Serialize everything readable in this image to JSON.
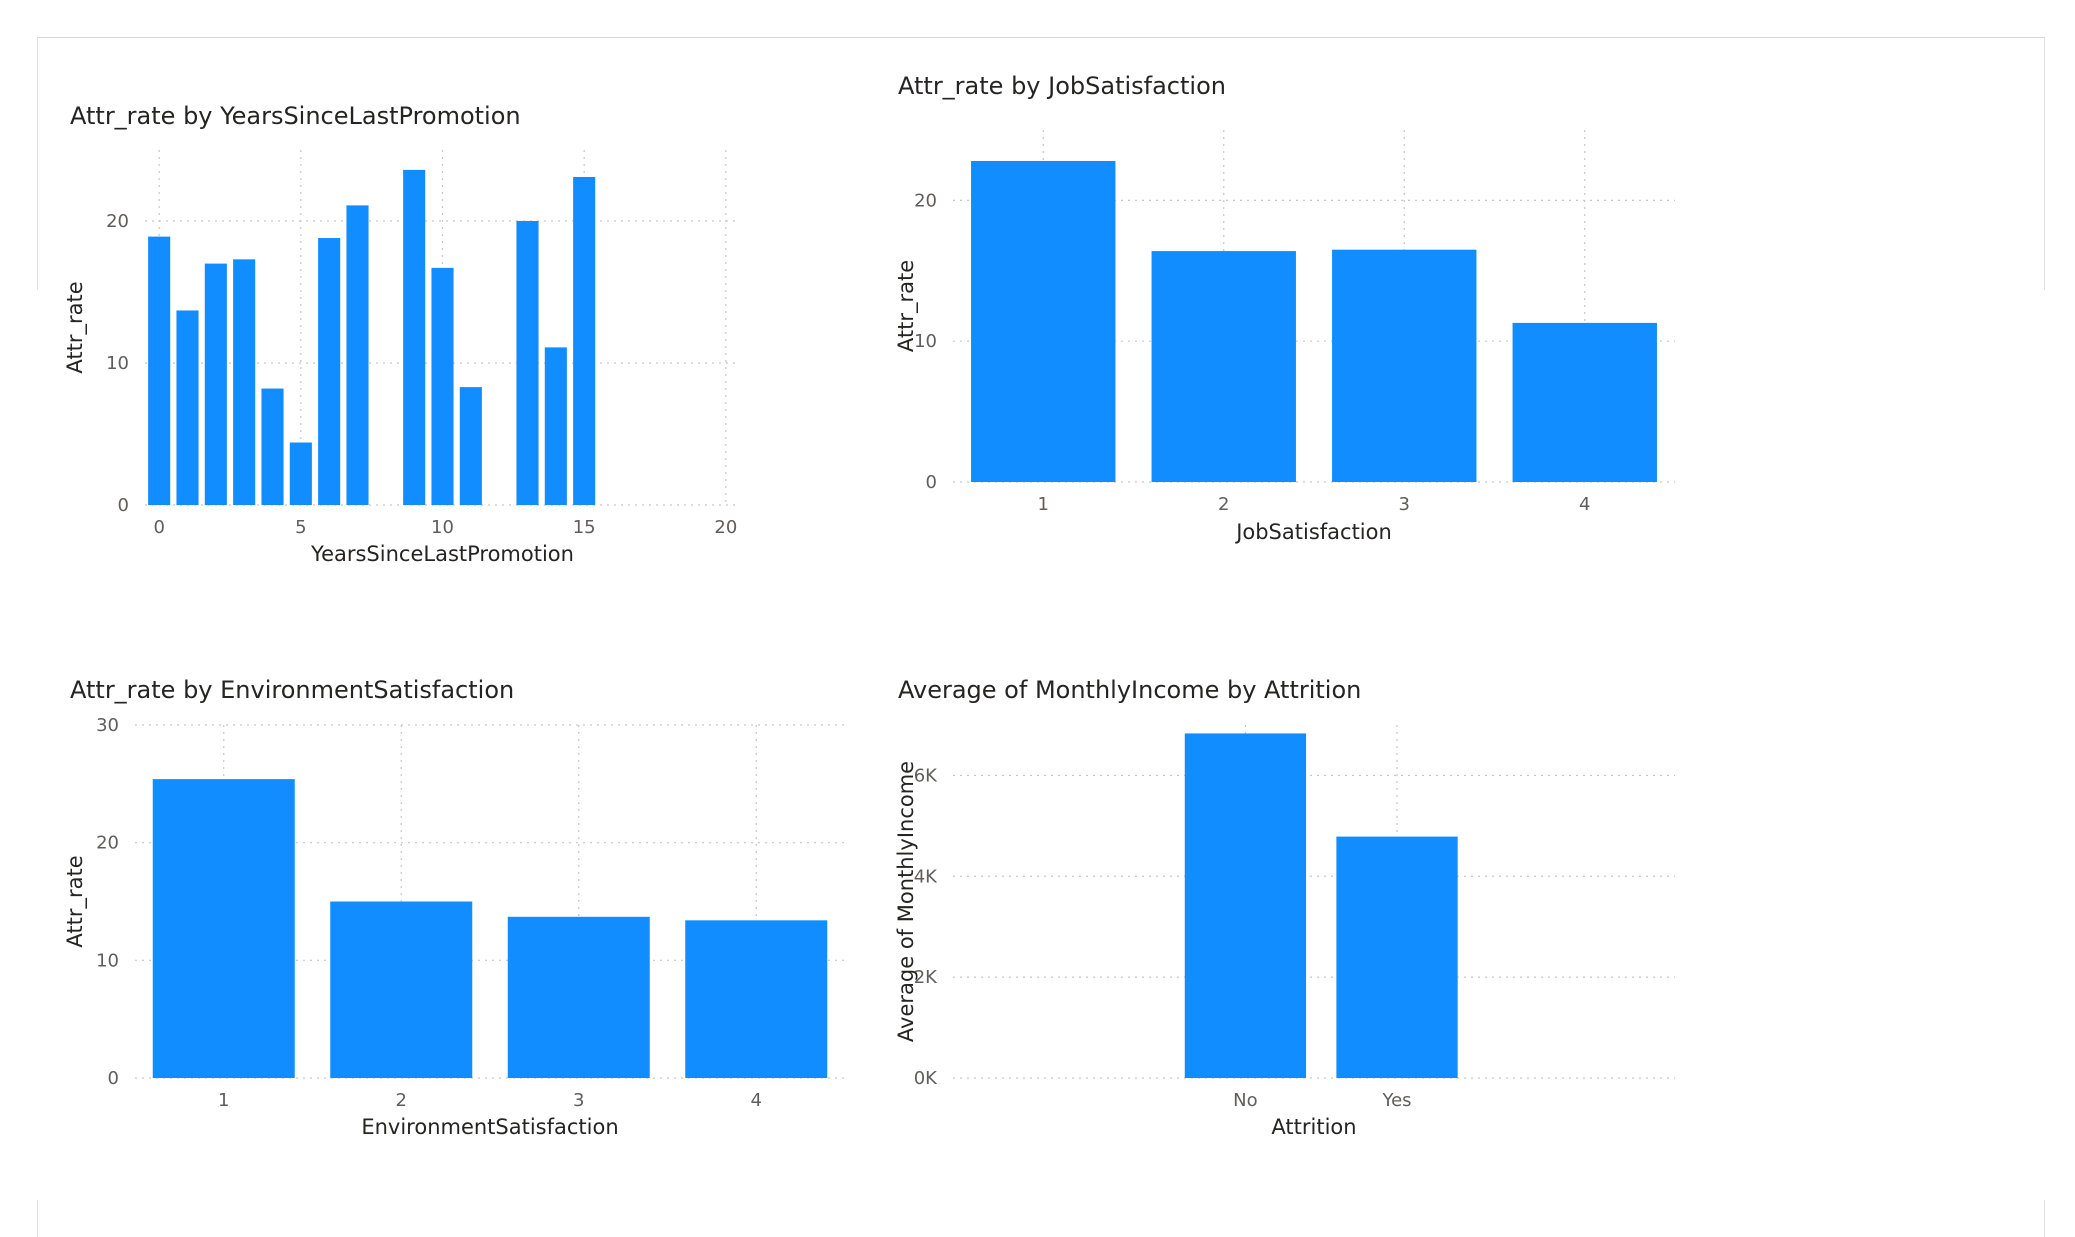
{
  "chart_data": [
    {
      "id": "c1",
      "type": "bar",
      "title": "Attr_rate by YearsSinceLastPromotion",
      "xlabel": "YearsSinceLastPromotion",
      "ylabel": "Attr_rate",
      "x_axis": "continuous",
      "xlim": [
        -0.5,
        20.5
      ],
      "xticks": [
        0,
        5,
        10,
        15,
        20
      ],
      "ylim": [
        0,
        25
      ],
      "yticks": [
        0,
        10,
        20
      ],
      "x": [
        0,
        1,
        2,
        3,
        4,
        5,
        6,
        7,
        9,
        10,
        11,
        13,
        14,
        15
      ],
      "values": [
        18.9,
        13.7,
        17.0,
        17.3,
        8.2,
        4.4,
        18.8,
        21.1,
        23.6,
        16.7,
        8.3,
        20.0,
        11.1,
        23.1
      ],
      "color": "#118dff"
    },
    {
      "id": "c2",
      "type": "bar",
      "title": "Attr_rate by JobSatisfaction",
      "xlabel": "JobSatisfaction",
      "ylabel": "Attr_rate",
      "categories": [
        "1",
        "2",
        "3",
        "4"
      ],
      "values": [
        22.8,
        16.4,
        16.5,
        11.3
      ],
      "ylim": [
        0,
        25
      ],
      "yticks": [
        0,
        10,
        20
      ],
      "color": "#118dff"
    },
    {
      "id": "c3",
      "type": "bar",
      "title": "Attr_rate by EnvironmentSatisfaction",
      "xlabel": "EnvironmentSatisfaction",
      "ylabel": "Attr_rate",
      "categories": [
        "1",
        "2",
        "3",
        "4"
      ],
      "values": [
        25.4,
        15.0,
        13.7,
        13.4
      ],
      "ylim": [
        0,
        30
      ],
      "yticks": [
        0,
        10,
        20,
        30
      ],
      "color": "#118dff"
    },
    {
      "id": "c4",
      "type": "bar",
      "title": "Average of MonthlyIncome by Attrition",
      "xlabel": "Attrition",
      "ylabel": "Average of MonthlyIncome",
      "categories": [
        "No",
        "Yes"
      ],
      "values": [
        6833,
        4787
      ],
      "ylim": [
        0,
        7000
      ],
      "yticks": [
        0,
        2000,
        4000,
        6000
      ],
      "ytick_labels": [
        "0K",
        "2K",
        "4K",
        "6K"
      ],
      "color": "#118dff"
    }
  ]
}
